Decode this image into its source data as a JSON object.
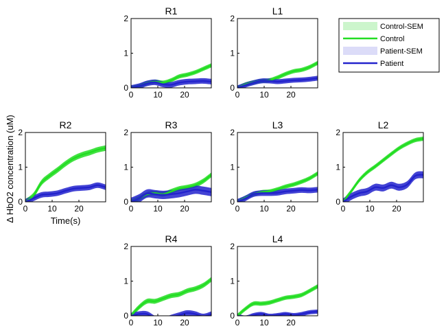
{
  "chart_data": {
    "type": "line",
    "ylabel": "Δ HbO2 concentration (uM)",
    "xlabel": "Time(s)",
    "xlim": [
      0,
      30
    ],
    "ylim": [
      0,
      2
    ],
    "xticks": [
      0,
      10,
      20
    ],
    "yticks": [
      0,
      1,
      2
    ],
    "grid": false,
    "legend_position": "top-right",
    "legend": [
      {
        "label": "Control-SEM",
        "kind": "band",
        "color": "#ccf5cc"
      },
      {
        "label": "Control",
        "kind": "line",
        "color": "#22dd22"
      },
      {
        "label": "Patient-SEM",
        "kind": "band",
        "color": "#dcdcf8"
      },
      {
        "label": "Patient",
        "kind": "line",
        "color": "#2222cc"
      }
    ],
    "colors": {
      "control": "#22dd22",
      "control_sem": "#ccf5cc",
      "patient": "#2222cc",
      "patient_sem": "#dcdcf8"
    },
    "x": [
      0,
      3,
      6,
      9,
      12,
      15,
      18,
      21,
      24,
      27,
      30
    ],
    "panels": [
      {
        "title": "R1",
        "control": [
          0,
          0.05,
          0.14,
          0.18,
          0.15,
          0.22,
          0.33,
          0.38,
          0.45,
          0.55,
          0.65
        ],
        "control_sem": 0.06,
        "patient": [
          0,
          0.05,
          0.13,
          0.16,
          0.1,
          0.09,
          0.15,
          0.18,
          0.19,
          0.2,
          0.18
        ],
        "patient_sem": 0.08
      },
      {
        "title": "L1",
        "control": [
          0,
          0.1,
          0.16,
          0.2,
          0.22,
          0.3,
          0.4,
          0.48,
          0.52,
          0.6,
          0.72
        ],
        "control_sem": 0.06,
        "patient": [
          0,
          0.08,
          0.15,
          0.2,
          0.2,
          0.18,
          0.2,
          0.22,
          0.23,
          0.25,
          0.28
        ],
        "patient_sem": 0.07
      },
      {
        "title": "R2",
        "control": [
          0,
          0.18,
          0.55,
          0.75,
          0.92,
          1.1,
          1.25,
          1.35,
          1.42,
          1.5,
          1.55
        ],
        "control_sem": 0.08,
        "patient": [
          0,
          0.1,
          0.2,
          0.22,
          0.25,
          0.32,
          0.38,
          0.4,
          0.42,
          0.48,
          0.42
        ],
        "patient_sem": 0.08
      },
      {
        "title": "R3",
        "control": [
          0,
          0.1,
          0.22,
          0.25,
          0.22,
          0.3,
          0.38,
          0.42,
          0.48,
          0.6,
          0.78
        ],
        "control_sem": 0.07,
        "patient": [
          0,
          0.1,
          0.24,
          0.22,
          0.2,
          0.22,
          0.25,
          0.3,
          0.35,
          0.32,
          0.28
        ],
        "patient_sem": 0.12
      },
      {
        "title": "L3",
        "control": [
          0,
          0.12,
          0.22,
          0.28,
          0.3,
          0.36,
          0.44,
          0.5,
          0.58,
          0.68,
          0.82
        ],
        "control_sem": 0.06,
        "patient": [
          0,
          0.1,
          0.22,
          0.25,
          0.25,
          0.26,
          0.3,
          0.32,
          0.34,
          0.33,
          0.35
        ],
        "patient_sem": 0.08
      },
      {
        "title": "L2",
        "control": [
          0,
          0.3,
          0.62,
          0.85,
          1.02,
          1.2,
          1.38,
          1.55,
          1.68,
          1.78,
          1.82
        ],
        "control_sem": 0.06,
        "patient": [
          0,
          0.15,
          0.25,
          0.3,
          0.42,
          0.4,
          0.48,
          0.42,
          0.5,
          0.75,
          0.78
        ],
        "patient_sem": 0.1
      },
      {
        "title": "R4",
        "control": [
          0,
          0.25,
          0.42,
          0.42,
          0.5,
          0.58,
          0.62,
          0.72,
          0.78,
          0.88,
          1.05
        ],
        "control_sem": 0.07,
        "patient": [
          0,
          0.05,
          0.05,
          -0.08,
          -0.12,
          -0.05,
          0.02,
          0.08,
          0.05,
          -0.02,
          0.05
        ],
        "patient_sem": 0.08
      },
      {
        "title": "L4",
        "control": [
          0,
          0.2,
          0.35,
          0.35,
          0.38,
          0.45,
          0.52,
          0.55,
          0.6,
          0.72,
          0.85
        ],
        "control_sem": 0.06,
        "patient": [
          0,
          -0.05,
          0.02,
          0.05,
          0.0,
          0.02,
          0.05,
          0.02,
          0.05,
          0.1,
          0.12
        ],
        "patient_sem": 0.06
      }
    ]
  }
}
